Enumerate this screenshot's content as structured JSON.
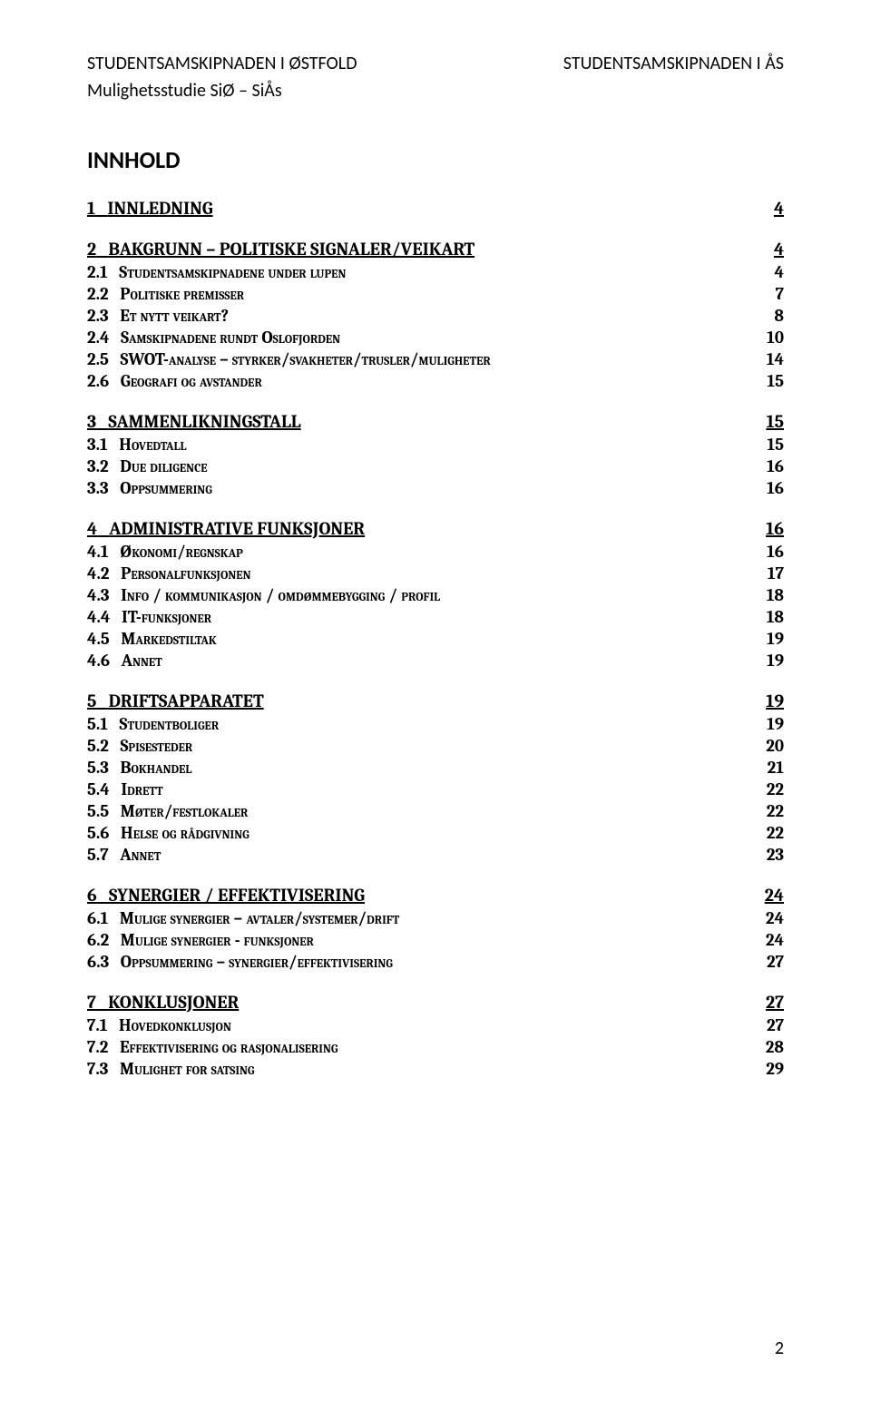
{
  "header": {
    "left": "STUDENTSAMSKIPNADEN I ØSTFOLD",
    "right": "STUDENTSAMSKIPNADEN I ÅS",
    "sub": "Mulighetsstudie SiØ – SiÅs"
  },
  "title": "INNHOLD",
  "toc": [
    {
      "type": "section",
      "num": "1",
      "label": "INNLEDNING",
      "page": "4"
    },
    {
      "type": "section",
      "num": "2",
      "label": "BAKGRUNN – POLITISKE SIGNALER/VEIKART",
      "page": "4"
    },
    {
      "type": "sub",
      "num": "2.1",
      "label": "Studentsamskipnadene under lupen",
      "page": "4"
    },
    {
      "type": "sub",
      "num": "2.2",
      "label": "Politiske premisser",
      "page": "7"
    },
    {
      "type": "sub",
      "num": "2.3",
      "label": "Et nytt veikart?",
      "page": "8"
    },
    {
      "type": "sub",
      "num": "2.4",
      "label": "Samskipnadene rundt Oslofjorden",
      "page": "10"
    },
    {
      "type": "sub",
      "num": "2.5",
      "label": "SWOT-analyse – styrker/svakheter/trusler/muligheter",
      "page": "14"
    },
    {
      "type": "sub",
      "num": "2.6",
      "label": "Geografi og avstander",
      "page": "15"
    },
    {
      "type": "section",
      "num": "3",
      "label": "SAMMENLIKNINGSTALL",
      "page": "15"
    },
    {
      "type": "sub",
      "num": "3.1",
      "label": "Hovedtall",
      "page": "15"
    },
    {
      "type": "sub",
      "num": "3.2",
      "label": "Due diligence",
      "page": "16"
    },
    {
      "type": "sub",
      "num": "3.3",
      "label": "Oppsummering",
      "page": "16"
    },
    {
      "type": "section",
      "num": "4",
      "label": "ADMINISTRATIVE FUNKSJONER",
      "page": "16"
    },
    {
      "type": "sub",
      "num": "4.1",
      "label": "Økonomi/regnskap",
      "page": "16"
    },
    {
      "type": "sub",
      "num": "4.2",
      "label": "Personalfunksjonen",
      "page": "17"
    },
    {
      "type": "sub",
      "num": "4.3",
      "label": "Info / kommunikasjon / omdømmebygging / profil",
      "page": "18"
    },
    {
      "type": "sub",
      "num": "4.4",
      "label": "IT-funksjoner",
      "page": "18"
    },
    {
      "type": "sub",
      "num": "4.5",
      "label": "Markedstiltak",
      "page": "19"
    },
    {
      "type": "sub",
      "num": "4.6",
      "label": "Annet",
      "page": "19"
    },
    {
      "type": "section",
      "num": "5",
      "label": "DRIFTSAPPARATET",
      "page": "19"
    },
    {
      "type": "sub",
      "num": "5.1",
      "label": "Studentboliger",
      "page": "19"
    },
    {
      "type": "sub",
      "num": "5.2",
      "label": "Spisesteder",
      "page": "20"
    },
    {
      "type": "sub",
      "num": "5.3",
      "label": "Bokhandel",
      "page": "21"
    },
    {
      "type": "sub",
      "num": "5.4",
      "label": "Idrett",
      "page": "22"
    },
    {
      "type": "sub",
      "num": "5.5",
      "label": "Møter/festlokaler",
      "page": "22"
    },
    {
      "type": "sub",
      "num": "5.6",
      "label": "Helse og rådgivning",
      "page": "22"
    },
    {
      "type": "sub",
      "num": "5.7",
      "label": "Annet",
      "page": "23"
    },
    {
      "type": "section",
      "num": "6",
      "label": "SYNERGIER / EFFEKTIVISERING",
      "page": "24"
    },
    {
      "type": "sub",
      "num": "6.1",
      "label": "Mulige synergier – avtaler/systemer/drift",
      "page": "24"
    },
    {
      "type": "sub",
      "num": "6.2",
      "label": "Mulige synergier - funksjoner",
      "page": "24"
    },
    {
      "type": "sub",
      "num": "6.3",
      "label": "Oppsummering – synergier/effektivisering",
      "page": "27"
    },
    {
      "type": "section",
      "num": "7",
      "label": "KONKLUSJONER",
      "page": "27"
    },
    {
      "type": "sub",
      "num": "7.1",
      "label": "Hovedkonklusjon",
      "page": "27"
    },
    {
      "type": "sub",
      "num": "7.2",
      "label": "Effektivisering og rasjonalisering",
      "page": "28"
    },
    {
      "type": "sub",
      "num": "7.3",
      "label": "Mulighet for satsing",
      "page": "29"
    }
  ],
  "footer_page": "2"
}
